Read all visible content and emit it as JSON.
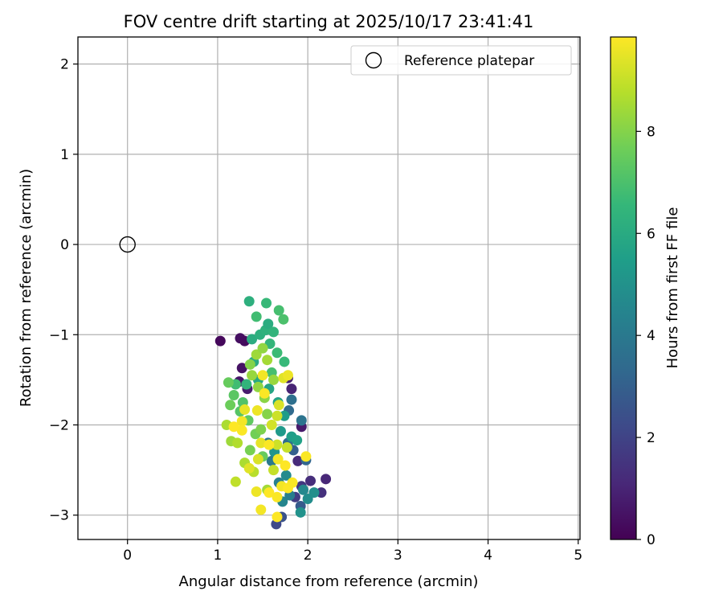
{
  "chart_data": {
    "type": "scatter",
    "title": "FOV centre drift starting at 2025/10/17 23:41:41",
    "xlabel": "Angular distance from reference (arcmin)",
    "ylabel": "Rotation from reference (arcmin)",
    "xlim": [
      -0.55,
      5.02
    ],
    "ylim": [
      -3.27,
      2.3
    ],
    "xticks": [
      0,
      1,
      2,
      3,
      4,
      5
    ],
    "xtick_labels": [
      "0",
      "1",
      "2",
      "3",
      "4",
      "5"
    ],
    "yticks": [
      -3,
      -2,
      -1,
      0,
      1,
      2
    ],
    "ytick_labels": [
      "−3",
      "−2",
      "−1",
      "0",
      "1",
      "2"
    ],
    "grid": true,
    "legend": {
      "placement": "top-right",
      "entries": [
        "Reference platepar"
      ]
    },
    "reference_point": {
      "label": "Reference platepar",
      "x": 0,
      "y": 0,
      "marker": "open-circle"
    },
    "colorbar": {
      "label": "Hours from first FF file",
      "colormap": "viridis",
      "range": [
        0,
        9.85
      ],
      "ticks": [
        0,
        2,
        4,
        6,
        8
      ],
      "tick_labels": [
        "0",
        "2",
        "4",
        "6",
        "8"
      ]
    },
    "colormap_stops": [
      "#440154",
      "#482878",
      "#3e4989",
      "#31688e",
      "#26828e",
      "#1f9e89",
      "#35b779",
      "#6ece58",
      "#b5de2b",
      "#fde725"
    ],
    "series": [
      {
        "color_by": "hours",
        "points": [
          {
            "x": 1.03,
            "y": -1.07,
            "t": 0.2
          },
          {
            "x": 1.25,
            "y": -1.04,
            "t": 0.4
          },
          {
            "x": 1.3,
            "y": -1.07,
            "t": 0.3
          },
          {
            "x": 1.27,
            "y": -1.37,
            "t": 0.5
          },
          {
            "x": 1.24,
            "y": -1.52,
            "t": 0.6
          },
          {
            "x": 1.33,
            "y": -1.6,
            "t": 0.8
          },
          {
            "x": 1.78,
            "y": -1.48,
            "t": 0.9
          },
          {
            "x": 1.82,
            "y": -1.6,
            "t": 1.0
          },
          {
            "x": 1.93,
            "y": -2.02,
            "t": 0.7
          },
          {
            "x": 1.89,
            "y": -2.4,
            "t": 1.2
          },
          {
            "x": 2.2,
            "y": -2.6,
            "t": 1.1
          },
          {
            "x": 2.15,
            "y": -2.75,
            "t": 1.4
          },
          {
            "x": 1.93,
            "y": -2.68,
            "t": 1.6
          },
          {
            "x": 2.03,
            "y": -2.62,
            "t": 1.3
          },
          {
            "x": 1.86,
            "y": -2.8,
            "t": 1.8
          },
          {
            "x": 1.65,
            "y": -3.1,
            "t": 2.2
          },
          {
            "x": 1.71,
            "y": -3.02,
            "t": 2.5
          },
          {
            "x": 1.92,
            "y": -2.9,
            "t": 2.8
          },
          {
            "x": 1.98,
            "y": -2.39,
            "t": 3.2
          },
          {
            "x": 1.84,
            "y": -2.28,
            "t": 3.0
          },
          {
            "x": 1.78,
            "y": -2.2,
            "t": 3.5
          },
          {
            "x": 1.82,
            "y": -1.72,
            "t": 3.6
          },
          {
            "x": 1.79,
            "y": -1.84,
            "t": 3.4
          },
          {
            "x": 1.93,
            "y": -1.95,
            "t": 3.8
          },
          {
            "x": 1.56,
            "y": -2.2,
            "t": 3.9
          },
          {
            "x": 1.6,
            "y": -2.4,
            "t": 4.0
          },
          {
            "x": 1.68,
            "y": -2.64,
            "t": 4.3
          },
          {
            "x": 1.72,
            "y": -2.85,
            "t": 4.5
          },
          {
            "x": 1.8,
            "y": -2.78,
            "t": 4.2
          },
          {
            "x": 1.95,
            "y": -2.72,
            "t": 4.6
          },
          {
            "x": 2.0,
            "y": -2.82,
            "t": 4.8
          },
          {
            "x": 2.07,
            "y": -2.75,
            "t": 4.9
          },
          {
            "x": 1.92,
            "y": -2.97,
            "t": 5.0
          },
          {
            "x": 1.76,
            "y": -2.56,
            "t": 4.7
          },
          {
            "x": 1.63,
            "y": -2.3,
            "t": 5.1
          },
          {
            "x": 1.7,
            "y": -2.07,
            "t": 5.3
          },
          {
            "x": 1.82,
            "y": -2.13,
            "t": 5.5
          },
          {
            "x": 1.88,
            "y": -2.17,
            "t": 5.6
          },
          {
            "x": 1.74,
            "y": -1.9,
            "t": 5.4
          },
          {
            "x": 1.67,
            "y": -1.75,
            "t": 5.7
          },
          {
            "x": 1.57,
            "y": -1.6,
            "t": 5.8
          },
          {
            "x": 1.45,
            "y": -1.5,
            "t": 5.9
          },
          {
            "x": 1.4,
            "y": -1.3,
            "t": 6.0
          },
          {
            "x": 1.38,
            "y": -1.05,
            "t": 6.1
          },
          {
            "x": 1.47,
            "y": -1.0,
            "t": 6.2
          },
          {
            "x": 1.53,
            "y": -0.95,
            "t": 6.3
          },
          {
            "x": 1.56,
            "y": -0.88,
            "t": 6.1
          },
          {
            "x": 1.62,
            "y": -0.97,
            "t": 6.4
          },
          {
            "x": 1.35,
            "y": -0.63,
            "t": 6.2
          },
          {
            "x": 1.54,
            "y": -0.65,
            "t": 6.6
          },
          {
            "x": 1.43,
            "y": -0.8,
            "t": 6.8
          },
          {
            "x": 1.68,
            "y": -0.73,
            "t": 6.9
          },
          {
            "x": 1.73,
            "y": -0.83,
            "t": 7.0
          },
          {
            "x": 1.58,
            "y": -1.1,
            "t": 6.5
          },
          {
            "x": 1.66,
            "y": -1.2,
            "t": 6.7
          },
          {
            "x": 1.74,
            "y": -1.3,
            "t": 6.6
          },
          {
            "x": 1.6,
            "y": -1.42,
            "t": 6.9
          },
          {
            "x": 1.32,
            "y": -1.55,
            "t": 6.4
          },
          {
            "x": 1.2,
            "y": -1.55,
            "t": 6.8
          },
          {
            "x": 1.28,
            "y": -1.75,
            "t": 7.1
          },
          {
            "x": 1.18,
            "y": -1.67,
            "t": 7.3
          },
          {
            "x": 1.12,
            "y": -1.53,
            "t": 7.5
          },
          {
            "x": 1.14,
            "y": -1.78,
            "t": 7.6
          },
          {
            "x": 1.25,
            "y": -1.85,
            "t": 7.2
          },
          {
            "x": 1.34,
            "y": -1.95,
            "t": 7.4
          },
          {
            "x": 1.42,
            "y": -2.1,
            "t": 7.7
          },
          {
            "x": 1.36,
            "y": -2.28,
            "t": 7.8
          },
          {
            "x": 1.5,
            "y": -2.35,
            "t": 7.5
          },
          {
            "x": 1.48,
            "y": -2.05,
            "t": 7.9
          },
          {
            "x": 1.55,
            "y": -1.88,
            "t": 8.0
          },
          {
            "x": 1.52,
            "y": -1.7,
            "t": 8.1
          },
          {
            "x": 1.45,
            "y": -1.58,
            "t": 8.2
          },
          {
            "x": 1.38,
            "y": -1.45,
            "t": 8.3
          },
          {
            "x": 1.36,
            "y": -1.33,
            "t": 8.0
          },
          {
            "x": 1.43,
            "y": -1.22,
            "t": 8.4
          },
          {
            "x": 1.5,
            "y": -1.15,
            "t": 8.2
          },
          {
            "x": 1.55,
            "y": -1.28,
            "t": 8.5
          },
          {
            "x": 1.62,
            "y": -1.5,
            "t": 8.3
          },
          {
            "x": 1.1,
            "y": -2.0,
            "t": 8.6
          },
          {
            "x": 1.15,
            "y": -2.18,
            "t": 8.4
          },
          {
            "x": 1.22,
            "y": -2.2,
            "t": 8.7
          },
          {
            "x": 1.3,
            "y": -2.42,
            "t": 8.6
          },
          {
            "x": 1.4,
            "y": -2.52,
            "t": 8.8
          },
          {
            "x": 1.2,
            "y": -2.63,
            "t": 8.9
          },
          {
            "x": 1.55,
            "y": -2.72,
            "t": 8.5
          },
          {
            "x": 1.62,
            "y": -2.5,
            "t": 9.0
          },
          {
            "x": 1.77,
            "y": -2.25,
            "t": 9.0
          },
          {
            "x": 1.66,
            "y": -2.22,
            "t": 9.1
          },
          {
            "x": 1.6,
            "y": -2.0,
            "t": 9.2
          },
          {
            "x": 1.68,
            "y": -1.78,
            "t": 9.3
          },
          {
            "x": 1.73,
            "y": -1.48,
            "t": 9.4
          },
          {
            "x": 1.78,
            "y": -1.45,
            "t": 9.6
          },
          {
            "x": 1.5,
            "y": -1.45,
            "t": 9.7
          },
          {
            "x": 1.52,
            "y": -1.65,
            "t": 9.8
          },
          {
            "x": 1.44,
            "y": -1.84,
            "t": 9.6
          },
          {
            "x": 1.3,
            "y": -1.83,
            "t": 9.5
          },
          {
            "x": 1.27,
            "y": -1.96,
            "t": 9.7
          },
          {
            "x": 1.27,
            "y": -2.06,
            "t": 9.8
          },
          {
            "x": 1.18,
            "y": -2.02,
            "t": 9.9
          },
          {
            "x": 1.48,
            "y": -2.2,
            "t": 9.5
          },
          {
            "x": 1.57,
            "y": -2.22,
            "t": 9.8
          },
          {
            "x": 1.67,
            "y": -2.38,
            "t": 9.7
          },
          {
            "x": 1.75,
            "y": -2.45,
            "t": 9.9
          },
          {
            "x": 1.98,
            "y": -2.35,
            "t": 9.8
          },
          {
            "x": 1.43,
            "y": -2.74,
            "t": 9.6
          },
          {
            "x": 1.57,
            "y": -2.75,
            "t": 9.9
          },
          {
            "x": 1.66,
            "y": -2.8,
            "t": 9.8
          },
          {
            "x": 1.71,
            "y": -2.68,
            "t": 9.7
          },
          {
            "x": 1.78,
            "y": -2.7,
            "t": 9.9
          },
          {
            "x": 1.83,
            "y": -2.64,
            "t": 9.8
          },
          {
            "x": 1.48,
            "y": -2.94,
            "t": 9.7
          },
          {
            "x": 1.66,
            "y": -3.02,
            "t": 9.9
          },
          {
            "x": 1.35,
            "y": -2.48,
            "t": 9.4
          },
          {
            "x": 1.45,
            "y": -2.38,
            "t": 9.3
          },
          {
            "x": 1.66,
            "y": -1.9,
            "t": 9.1
          }
        ]
      }
    ]
  }
}
